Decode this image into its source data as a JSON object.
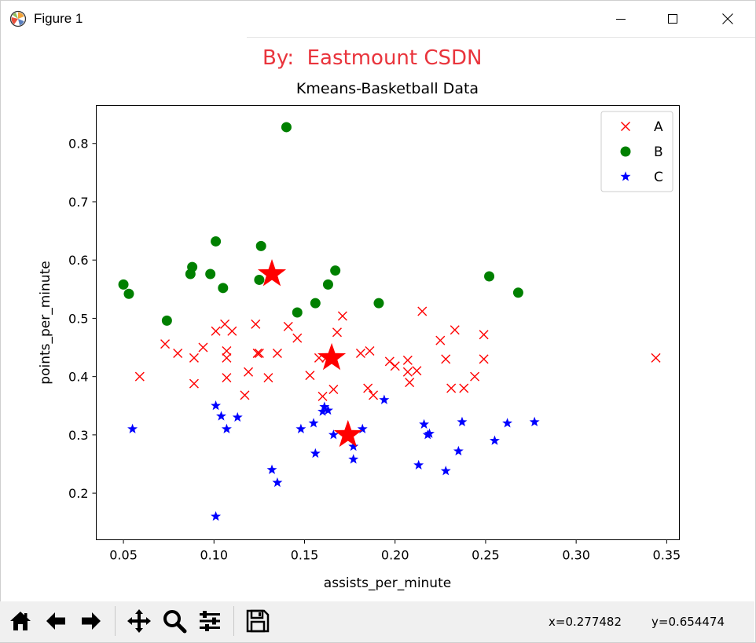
{
  "window": {
    "title": "Figure 1",
    "controls": [
      "minimize",
      "maximize",
      "close"
    ]
  },
  "watermark": "By:  Eastmount CSDN",
  "toolbar": {
    "buttons": [
      "home-icon",
      "back-arrow-icon",
      "forward-arrow-icon",
      "pan-icon",
      "zoom-icon",
      "configure-subplots-icon",
      "save-icon"
    ],
    "coord_x": "x=0.277482",
    "coord_y": "y=0.654474"
  },
  "chart_data": {
    "type": "scatter",
    "title": "Kmeans-Basketball Data",
    "xlabel": "assists_per_minute",
    "ylabel": "points_per_minute",
    "xlim": [
      0.035,
      0.357
    ],
    "ylim": [
      0.12,
      0.865
    ],
    "xticks": [
      0.05,
      0.1,
      0.15,
      0.2,
      0.25,
      0.3,
      0.35
    ],
    "xtick_labels": [
      "0.05",
      "0.10",
      "0.15",
      "0.20",
      "0.25",
      "0.30",
      "0.35"
    ],
    "yticks": [
      0.2,
      0.3,
      0.4,
      0.5,
      0.6,
      0.7,
      0.8
    ],
    "ytick_labels": [
      "0.2",
      "0.3",
      "0.4",
      "0.5",
      "0.6",
      "0.7",
      "0.8"
    ],
    "legend_position": "top-right",
    "series": [
      {
        "name": "A",
        "marker": "x",
        "color": "#ff0000",
        "points": [
          [
            0.059,
            0.4
          ],
          [
            0.073,
            0.456
          ],
          [
            0.08,
            0.44
          ],
          [
            0.089,
            0.432
          ],
          [
            0.089,
            0.388
          ],
          [
            0.094,
            0.45
          ],
          [
            0.101,
            0.478
          ],
          [
            0.106,
            0.49
          ],
          [
            0.107,
            0.444
          ],
          [
            0.107,
            0.432
          ],
          [
            0.107,
            0.398
          ],
          [
            0.11,
            0.478
          ],
          [
            0.117,
            0.368
          ],
          [
            0.119,
            0.408
          ],
          [
            0.123,
            0.49
          ],
          [
            0.124,
            0.44
          ],
          [
            0.125,
            0.44
          ],
          [
            0.13,
            0.398
          ],
          [
            0.135,
            0.44
          ],
          [
            0.141,
            0.486
          ],
          [
            0.146,
            0.466
          ],
          [
            0.153,
            0.402
          ],
          [
            0.158,
            0.432
          ],
          [
            0.16,
            0.366
          ],
          [
            0.162,
            0.432
          ],
          [
            0.166,
            0.378
          ],
          [
            0.168,
            0.476
          ],
          [
            0.171,
            0.504
          ],
          [
            0.181,
            0.44
          ],
          [
            0.185,
            0.38
          ],
          [
            0.186,
            0.444
          ],
          [
            0.188,
            0.368
          ],
          [
            0.197,
            0.426
          ],
          [
            0.2,
            0.418
          ],
          [
            0.207,
            0.428
          ],
          [
            0.207,
            0.408
          ],
          [
            0.208,
            0.39
          ],
          [
            0.212,
            0.41
          ],
          [
            0.215,
            0.512
          ],
          [
            0.225,
            0.462
          ],
          [
            0.228,
            0.43
          ],
          [
            0.231,
            0.38
          ],
          [
            0.233,
            0.48
          ],
          [
            0.238,
            0.38
          ],
          [
            0.244,
            0.4
          ],
          [
            0.249,
            0.43
          ],
          [
            0.249,
            0.472
          ],
          [
            0.344,
            0.432
          ]
        ]
      },
      {
        "name": "B",
        "marker": "o",
        "color": "#008000",
        "points": [
          [
            0.14,
            0.828
          ],
          [
            0.101,
            0.632
          ],
          [
            0.126,
            0.624
          ],
          [
            0.088,
            0.588
          ],
          [
            0.087,
            0.576
          ],
          [
            0.098,
            0.576
          ],
          [
            0.05,
            0.558
          ],
          [
            0.053,
            0.542
          ],
          [
            0.105,
            0.552
          ],
          [
            0.125,
            0.566
          ],
          [
            0.167,
            0.582
          ],
          [
            0.163,
            0.558
          ],
          [
            0.156,
            0.526
          ],
          [
            0.146,
            0.51
          ],
          [
            0.074,
            0.496
          ],
          [
            0.191,
            0.526
          ],
          [
            0.252,
            0.572
          ],
          [
            0.268,
            0.544
          ]
        ]
      },
      {
        "name": "C",
        "marker": "*",
        "color": "#0000ff",
        "points": [
          [
            0.055,
            0.31
          ],
          [
            0.101,
            0.35
          ],
          [
            0.104,
            0.332
          ],
          [
            0.107,
            0.31
          ],
          [
            0.113,
            0.33
          ],
          [
            0.101,
            0.16
          ],
          [
            0.132,
            0.24
          ],
          [
            0.135,
            0.218
          ],
          [
            0.148,
            0.31
          ],
          [
            0.155,
            0.32
          ],
          [
            0.156,
            0.268
          ],
          [
            0.16,
            0.34
          ],
          [
            0.161,
            0.348
          ],
          [
            0.163,
            0.342
          ],
          [
            0.166,
            0.3
          ],
          [
            0.177,
            0.28
          ],
          [
            0.177,
            0.258
          ],
          [
            0.182,
            0.31
          ],
          [
            0.194,
            0.36
          ],
          [
            0.213,
            0.248
          ],
          [
            0.216,
            0.318
          ],
          [
            0.218,
            0.3
          ],
          [
            0.219,
            0.302
          ],
          [
            0.228,
            0.238
          ],
          [
            0.235,
            0.272
          ],
          [
            0.237,
            0.322
          ],
          [
            0.255,
            0.29
          ],
          [
            0.262,
            0.32
          ],
          [
            0.277,
            0.322
          ]
        ]
      }
    ],
    "centroids": {
      "marker": "big-star",
      "color": "#ff0000",
      "points": [
        [
          0.132,
          0.576
        ],
        [
          0.165,
          0.432
        ],
        [
          0.174,
          0.3
        ]
      ]
    }
  }
}
